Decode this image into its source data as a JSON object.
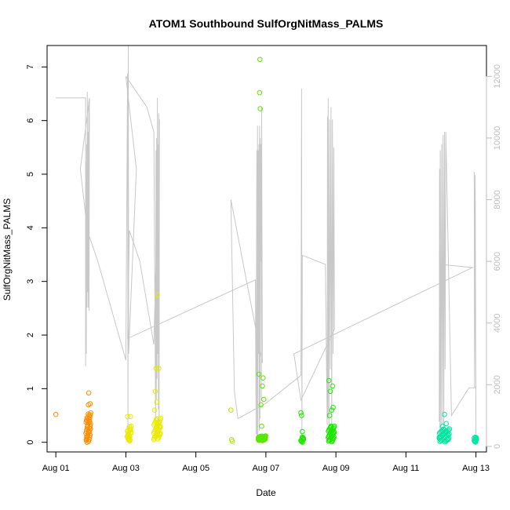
{
  "chart_data": {
    "type": "scatter",
    "title": "ATOM1 Southbound SulfOrgNitMass_PALMS",
    "xlabel": "Date",
    "ylabel": "SulfOrgNitMass_PALMS",
    "x_ticks": [
      "Aug 01",
      "Aug 03",
      "Aug 05",
      "Aug 07",
      "Aug 09",
      "Aug 11",
      "Aug 13"
    ],
    "x_tick_days": [
      1,
      3,
      5,
      7,
      9,
      11,
      13
    ],
    "xlim_days": [
      0.75,
      13.3
    ],
    "ylim": [
      -0.18,
      7.4
    ],
    "y_ticks": [
      0,
      1,
      2,
      3,
      4,
      5,
      6,
      7
    ],
    "y2lim": [
      -180,
      13000
    ],
    "y2_ticks": [
      0,
      2000,
      4000,
      6000,
      8000,
      10000,
      12000
    ],
    "grid": false,
    "secondary_series_color": "#c8c8c8",
    "color_by_day": [
      {
        "day": 1,
        "color": "#ff8c00"
      },
      {
        "day": 3,
        "color": "#eaea00"
      },
      {
        "day": 6,
        "color": "#b4e600"
      },
      {
        "day": 7,
        "color": "#5ae600"
      },
      {
        "day": 8,
        "color": "#1ee600"
      },
      {
        "day": 12,
        "color": "#00e6a0"
      }
    ],
    "scatter_points": [
      {
        "x": 1.0,
        "y": 0.52,
        "c": "#ff8c00"
      },
      {
        "x": 1.87,
        "y": 0.05,
        "c": "#ff8c00"
      },
      {
        "x": 1.88,
        "y": 0.1,
        "c": "#ff8c00"
      },
      {
        "x": 1.89,
        "y": 0.0,
        "c": "#ff8c00"
      },
      {
        "x": 1.9,
        "y": 0.4,
        "c": "#ff8c00"
      },
      {
        "x": 1.91,
        "y": 0.3,
        "c": "#ff8c00"
      },
      {
        "x": 1.92,
        "y": 0.45,
        "c": "#ff8c00"
      },
      {
        "x": 1.93,
        "y": 0.7,
        "c": "#ff8c00"
      },
      {
        "x": 1.94,
        "y": 0.92,
        "c": "#ff8c00"
      },
      {
        "x": 1.95,
        "y": 0.5,
        "c": "#ff8c00"
      },
      {
        "x": 1.96,
        "y": 0.2,
        "c": "#ff8c00"
      },
      {
        "x": 1.97,
        "y": 0.38,
        "c": "#ff8c00"
      },
      {
        "x": 1.98,
        "y": 0.72,
        "c": "#ff8c00"
      },
      {
        "x": 1.99,
        "y": 0.25,
        "c": "#ff8c00"
      },
      {
        "x": 3.05,
        "y": 0.48,
        "c": "#eaea00"
      },
      {
        "x": 3.07,
        "y": 0.2,
        "c": "#eaea00"
      },
      {
        "x": 3.09,
        "y": 0.05,
        "c": "#eaea00"
      },
      {
        "x": 3.11,
        "y": 0.1,
        "c": "#eaea00"
      },
      {
        "x": 3.13,
        "y": 0.48,
        "c": "#eaea00"
      },
      {
        "x": 3.15,
        "y": 0.3,
        "c": "#eaea00"
      },
      {
        "x": 3.8,
        "y": 0.05,
        "c": "#eaea00"
      },
      {
        "x": 3.82,
        "y": 0.6,
        "c": "#eaea00"
      },
      {
        "x": 3.84,
        "y": 0.95,
        "c": "#eaea00"
      },
      {
        "x": 3.86,
        "y": 1.38,
        "c": "#eaea00"
      },
      {
        "x": 3.88,
        "y": 0.75,
        "c": "#eaea00"
      },
      {
        "x": 3.9,
        "y": 2.75,
        "c": "#eaea00"
      },
      {
        "x": 3.92,
        "y": 0.2,
        "c": "#eaea00"
      },
      {
        "x": 3.94,
        "y": 1.38,
        "c": "#eaea00"
      },
      {
        "x": 3.96,
        "y": 0.3,
        "c": "#eaea00"
      },
      {
        "x": 3.98,
        "y": 0.15,
        "c": "#eaea00"
      },
      {
        "x": 6.0,
        "y": 0.6,
        "c": "#b4e600"
      },
      {
        "x": 6.02,
        "y": 0.05,
        "c": "#b4e600"
      },
      {
        "x": 6.04,
        "y": 0.02,
        "c": "#b4e600"
      },
      {
        "x": 6.8,
        "y": 1.27,
        "c": "#5ae600"
      },
      {
        "x": 6.82,
        "y": 6.52,
        "c": "#5ae600"
      },
      {
        "x": 6.83,
        "y": 7.14,
        "c": "#5ae600"
      },
      {
        "x": 6.84,
        "y": 6.22,
        "c": "#5ae600"
      },
      {
        "x": 6.86,
        "y": 0.7,
        "c": "#5ae600"
      },
      {
        "x": 6.88,
        "y": 0.3,
        "c": "#5ae600"
      },
      {
        "x": 6.9,
        "y": 1.05,
        "c": "#5ae600"
      },
      {
        "x": 6.92,
        "y": 1.2,
        "c": "#5ae600"
      },
      {
        "x": 6.94,
        "y": 0.8,
        "c": "#5ae600"
      },
      {
        "x": 6.96,
        "y": 0.05,
        "c": "#5ae600"
      },
      {
        "x": 8.0,
        "y": 0.55,
        "c": "#1ee600"
      },
      {
        "x": 8.02,
        "y": 0.5,
        "c": "#1ee600"
      },
      {
        "x": 8.04,
        "y": 0.2,
        "c": "#1ee600"
      },
      {
        "x": 8.06,
        "y": 0.05,
        "c": "#1ee600"
      },
      {
        "x": 8.8,
        "y": 1.15,
        "c": "#1ee600"
      },
      {
        "x": 8.82,
        "y": 0.5,
        "c": "#1ee600"
      },
      {
        "x": 8.84,
        "y": 0.95,
        "c": "#1ee600"
      },
      {
        "x": 8.86,
        "y": 0.3,
        "c": "#1ee600"
      },
      {
        "x": 8.88,
        "y": 0.6,
        "c": "#1ee600"
      },
      {
        "x": 8.9,
        "y": 1.05,
        "c": "#1ee600"
      },
      {
        "x": 8.92,
        "y": 0.65,
        "c": "#1ee600"
      },
      {
        "x": 8.94,
        "y": 0.2,
        "c": "#1ee600"
      },
      {
        "x": 12.0,
        "y": 0.1,
        "c": "#00e6a0"
      },
      {
        "x": 12.05,
        "y": 0.3,
        "c": "#00e6a0"
      },
      {
        "x": 12.1,
        "y": 0.52,
        "c": "#00e6a0"
      },
      {
        "x": 12.15,
        "y": 0.35,
        "c": "#00e6a0"
      },
      {
        "x": 12.2,
        "y": 0.05,
        "c": "#00e6a0"
      },
      {
        "x": 12.95,
        "y": 0.08,
        "c": "#00e6a0"
      },
      {
        "x": 13.0,
        "y": 0.03,
        "c": "#00e6a0"
      }
    ],
    "scatter_clusters": [
      {
        "x0": 1.86,
        "x1": 2.0,
        "y0": 0.0,
        "y1": 0.55,
        "n": 28,
        "c": "#ff8c00"
      },
      {
        "x0": 3.04,
        "x1": 3.16,
        "y0": 0.02,
        "y1": 0.3,
        "n": 16,
        "c": "#eaea00"
      },
      {
        "x0": 3.8,
        "x1": 4.0,
        "y0": 0.05,
        "y1": 0.45,
        "n": 34,
        "c": "#eaea00"
      },
      {
        "x0": 6.78,
        "x1": 7.0,
        "y0": 0.03,
        "y1": 0.12,
        "n": 30,
        "c": "#5ae600"
      },
      {
        "x0": 8.0,
        "x1": 8.08,
        "y0": 0.0,
        "y1": 0.1,
        "n": 12,
        "c": "#1ee600"
      },
      {
        "x0": 8.78,
        "x1": 8.96,
        "y0": 0.0,
        "y1": 0.3,
        "n": 34,
        "c": "#1ee600"
      },
      {
        "x0": 11.95,
        "x1": 12.25,
        "y0": 0.0,
        "y1": 0.25,
        "n": 36,
        "c": "#00e6a0"
      },
      {
        "x0": 12.95,
        "x1": 13.02,
        "y0": 0.0,
        "y1": 0.1,
        "n": 12,
        "c": "#00e6a0"
      }
    ],
    "secondary_line": [
      [
        1.0,
        11300
      ],
      [
        1.5,
        11300
      ],
      [
        1.85,
        11300
      ],
      [
        1.85,
        2600
      ],
      [
        1.86,
        9200
      ],
      [
        1.87,
        3000
      ],
      [
        1.88,
        9800
      ],
      [
        1.89,
        4500
      ],
      [
        1.9,
        11500
      ],
      [
        1.91,
        5000
      ],
      [
        1.92,
        10200
      ],
      [
        1.93,
        4500
      ],
      [
        1.94,
        11200
      ],
      [
        1.95,
        4400
      ],
      [
        1.96,
        11300
      ],
      [
        1.7,
        9000
      ],
      [
        1.9,
        7000
      ],
      [
        2.2,
        6000
      ],
      [
        3.0,
        2800
      ],
      [
        3.05,
        12100
      ],
      [
        3.06,
        200
      ],
      [
        3.07,
        13000
      ],
      [
        3.08,
        3000
      ],
      [
        3.1,
        3600
      ],
      [
        3.3,
        9000
      ],
      [
        3.0,
        12000
      ],
      [
        3.6,
        11000
      ],
      [
        3.8,
        10200
      ],
      [
        3.85,
        800
      ],
      [
        3.86,
        9600
      ],
      [
        3.87,
        1500
      ],
      [
        3.88,
        10000
      ],
      [
        3.89,
        2200
      ],
      [
        3.9,
        11300
      ],
      [
        3.91,
        3000
      ],
      [
        3.92,
        9800
      ],
      [
        3.93,
        1200
      ],
      [
        3.94,
        10800
      ],
      [
        3.95,
        500
      ],
      [
        3.96,
        10600
      ],
      [
        3.8,
        3300
      ],
      [
        3.4,
        6000
      ],
      [
        3.1,
        7000
      ],
      [
        3.05,
        3500
      ],
      [
        6.7,
        5400
      ],
      [
        6.72,
        400
      ],
      [
        6.74,
        9600
      ],
      [
        6.75,
        300
      ],
      [
        6.76,
        10400
      ],
      [
        6.77,
        200
      ],
      [
        6.78,
        9600
      ],
      [
        6.79,
        3000
      ],
      [
        6.8,
        9800
      ],
      [
        6.81,
        500
      ],
      [
        6.82,
        10400
      ],
      [
        6.83,
        900
      ],
      [
        6.84,
        10000
      ],
      [
        6.85,
        6000
      ],
      [
        6.86,
        9800
      ],
      [
        6.87,
        1500
      ],
      [
        6.88,
        11000
      ],
      [
        6.9,
        2700
      ],
      [
        6.0,
        8000
      ],
      [
        6.1,
        1800
      ],
      [
        6.2,
        900
      ],
      [
        7.0,
        1400
      ],
      [
        8.0,
        2300
      ],
      [
        8.02,
        11600
      ],
      [
        8.03,
        300
      ],
      [
        8.04,
        6200
      ],
      [
        8.7,
        5900
      ],
      [
        8.75,
        700
      ],
      [
        8.76,
        10700
      ],
      [
        8.77,
        900
      ],
      [
        8.78,
        11300
      ],
      [
        8.8,
        400
      ],
      [
        8.82,
        10600
      ],
      [
        8.84,
        2500
      ],
      [
        8.86,
        11000
      ],
      [
        8.88,
        600
      ],
      [
        8.9,
        10600
      ],
      [
        8.92,
        3000
      ],
      [
        8.94,
        9700
      ],
      [
        8.96,
        3800
      ],
      [
        8.0,
        1500
      ],
      [
        7.8,
        3000
      ],
      [
        12.9,
        5800
      ],
      [
        12.0,
        5900
      ],
      [
        11.95,
        800
      ],
      [
        11.96,
        9000
      ],
      [
        11.97,
        200
      ],
      [
        11.98,
        9600
      ],
      [
        12.0,
        400
      ],
      [
        12.02,
        9800
      ],
      [
        12.04,
        700
      ],
      [
        12.06,
        10100
      ],
      [
        12.08,
        500
      ],
      [
        12.1,
        10200
      ],
      [
        12.12,
        2500
      ],
      [
        12.14,
        10200
      ],
      [
        12.3,
        1000
      ],
      [
        12.8,
        1900
      ],
      [
        13.0,
        1900
      ],
      [
        12.95,
        8900
      ],
      [
        12.96,
        1900
      ],
      [
        12.98,
        8800
      ],
      [
        13.0,
        400
      ]
    ]
  }
}
